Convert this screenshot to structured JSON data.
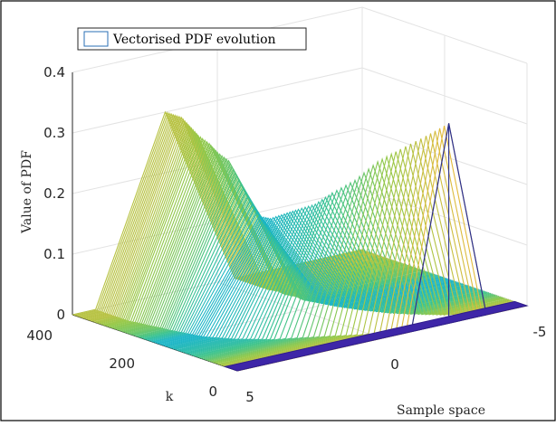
{
  "chart_data": {
    "type": "surface",
    "title": "",
    "xlabel": "Sample space",
    "ylabel": "k",
    "zlabel": "Value of PDF",
    "legend": {
      "label": "Vectorised PDF evolution",
      "placement": "top-left"
    },
    "axes": {
      "x": {
        "range": [
          -5,
          5
        ],
        "ticks": [
          -5,
          0,
          5
        ],
        "tick_labels": [
          "-5",
          "0",
          "5"
        ]
      },
      "y": {
        "range": [
          0,
          400
        ],
        "ticks": [
          0,
          200,
          400
        ],
        "tick_labels": [
          "0",
          "200",
          "400"
        ]
      },
      "z": {
        "range": [
          0,
          0.4
        ],
        "ticks": [
          0,
          0.1,
          0.2,
          0.3,
          0.4
        ],
        "tick_labels": [
          "0",
          "0.1",
          "0.2",
          "0.3",
          "0.4"
        ]
      }
    },
    "grid": true,
    "colormap": "parula",
    "ridges": [
      {
        "k": 0,
        "peak_x": -2.3,
        "peak_value": 0.33,
        "width": 2.6
      },
      {
        "k": 20,
        "peak_x": -1.8,
        "peak_value": 0.31,
        "width": 2.8
      },
      {
        "k": 40,
        "peak_x": -1.2,
        "peak_value": 0.29,
        "width": 3.0
      },
      {
        "k": 60,
        "peak_x": -0.7,
        "peak_value": 0.27,
        "width": 3.3
      },
      {
        "k": 80,
        "peak_x": -0.2,
        "peak_value": 0.24,
        "width": 3.6
      },
      {
        "k": 100,
        "peak_x": 0.3,
        "peak_value": 0.22,
        "width": 4.0
      },
      {
        "k": 120,
        "peak_x": 0.6,
        "peak_value": 0.2,
        "width": 4.2
      },
      {
        "k": 140,
        "peak_x": 0.9,
        "peak_value": 0.19,
        "width": 4.4
      },
      {
        "k": 160,
        "peak_x": 1.1,
        "peak_value": 0.18,
        "width": 4.5
      },
      {
        "k": 180,
        "peak_x": 1.3,
        "peak_value": 0.17,
        "width": 4.6
      },
      {
        "k": 200,
        "peak_x": 1.4,
        "peak_value": 0.17,
        "width": 4.6
      },
      {
        "k": 220,
        "peak_x": 1.5,
        "peak_value": 0.2,
        "width": 4.6
      },
      {
        "k": 240,
        "peak_x": 1.6,
        "peak_value": 0.23,
        "width": 4.6
      },
      {
        "k": 260,
        "peak_x": 1.6,
        "peak_value": 0.25,
        "width": 4.7
      },
      {
        "k": 280,
        "peak_x": 1.7,
        "peak_value": 0.26,
        "width": 4.7
      },
      {
        "k": 300,
        "peak_x": 1.7,
        "peak_value": 0.27,
        "width": 4.8
      },
      {
        "k": 320,
        "peak_x": 1.8,
        "peak_value": 0.28,
        "width": 4.8
      },
      {
        "k": 340,
        "peak_x": 1.8,
        "peak_value": 0.29,
        "width": 4.8
      },
      {
        "k": 360,
        "peak_x": 1.8,
        "peak_value": 0.3,
        "width": 4.8
      },
      {
        "k": 380,
        "peak_x": 1.8,
        "peak_value": 0.3,
        "width": 4.8
      },
      {
        "k": 400,
        "peak_x": 1.8,
        "peak_value": 0.3,
        "width": 4.8
      }
    ]
  }
}
